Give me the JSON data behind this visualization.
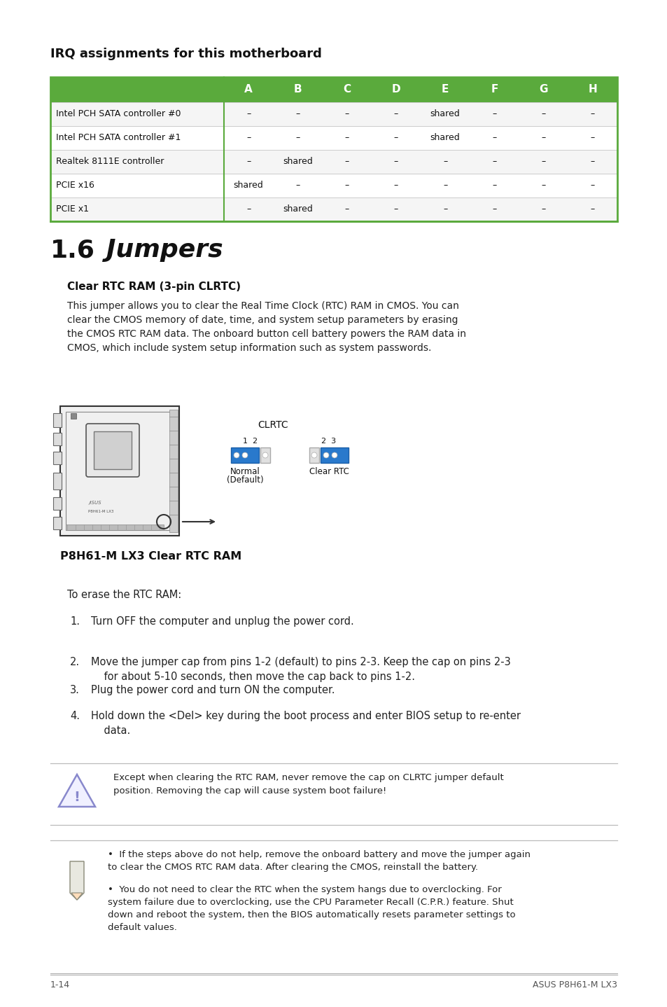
{
  "page_bg": "#ffffff",
  "green_color": "#5aaa3c",
  "header_title": "IRQ assignments for this motherboard",
  "table_columns": [
    "",
    "A",
    "B",
    "C",
    "D",
    "E",
    "F",
    "G",
    "H"
  ],
  "table_rows": [
    [
      "Intel PCH SATA controller #0",
      "–",
      "–",
      "–",
      "–",
      "shared",
      "–",
      "–",
      "–"
    ],
    [
      "Intel PCH SATA controller #1",
      "–",
      "–",
      "–",
      "–",
      "shared",
      "–",
      "–",
      "–"
    ],
    [
      "Realtek 8111E controller",
      "–",
      "shared",
      "–",
      "–",
      "–",
      "–",
      "–",
      "–"
    ],
    [
      "PCIE x16",
      "shared",
      "–",
      "–",
      "–",
      "–",
      "–",
      "–",
      "–"
    ],
    [
      "PCIE x1",
      "–",
      "shared",
      "–",
      "–",
      "–",
      "–",
      "–",
      "–"
    ]
  ],
  "section_num": "1.6",
  "section_title": "Jumpers",
  "subsection_title": "Clear RTC RAM (3-pin CLRTC)",
  "body_text": "This jumper allows you to clear the Real Time Clock (RTC) RAM in CMOS. You can\nclear the CMOS memory of date, time, and system setup parameters by erasing\nthe CMOS RTC RAM data. The onboard button cell battery powers the RAM data in\nCMOS, which include system setup information such as system passwords.",
  "diagram_label": "CLRTC",
  "jumper1_pins": "1  2",
  "jumper2_pins": "2  3",
  "jumper1_label": "Normal",
  "jumper1_sublabel": "(Default)",
  "jumper2_label": "Clear RTC",
  "diagram_caption": "P8H61-M LX3 Clear RTC RAM",
  "to_erase": "To erase the RTC RAM:",
  "steps": [
    "Turn OFF the computer and unplug the power cord.",
    "Move the jumper cap from pins 1-2 (default) to pins 2-3. Keep the cap on pins 2-3\n    for about 5-10 seconds, then move the cap back to pins 1-2.",
    "Plug the power cord and turn ON the computer.",
    "Hold down the <Del> key during the boot process and enter BIOS setup to re-enter\n    data."
  ],
  "warning_text": "Except when clearing the RTC RAM, never remove the cap on CLRTC jumper default\nposition. Removing the cap will cause system boot failure!",
  "note_bullets": [
    "If the steps above do not help, remove the onboard battery and move the jumper again\nto clear the CMOS RTC RAM data. After clearing the CMOS, reinstall the battery.",
    "You do not need to clear the RTC when the system hangs due to overclocking. For\nsystem failure due to overclocking, use the CPU Parameter Recall (C.P.R.) feature. Shut\ndown and reboot the system, then the BIOS automatically resets parameter settings to\ndefault values."
  ],
  "footer_left": "1-14",
  "footer_right": "ASUS P8H61-M LX3"
}
